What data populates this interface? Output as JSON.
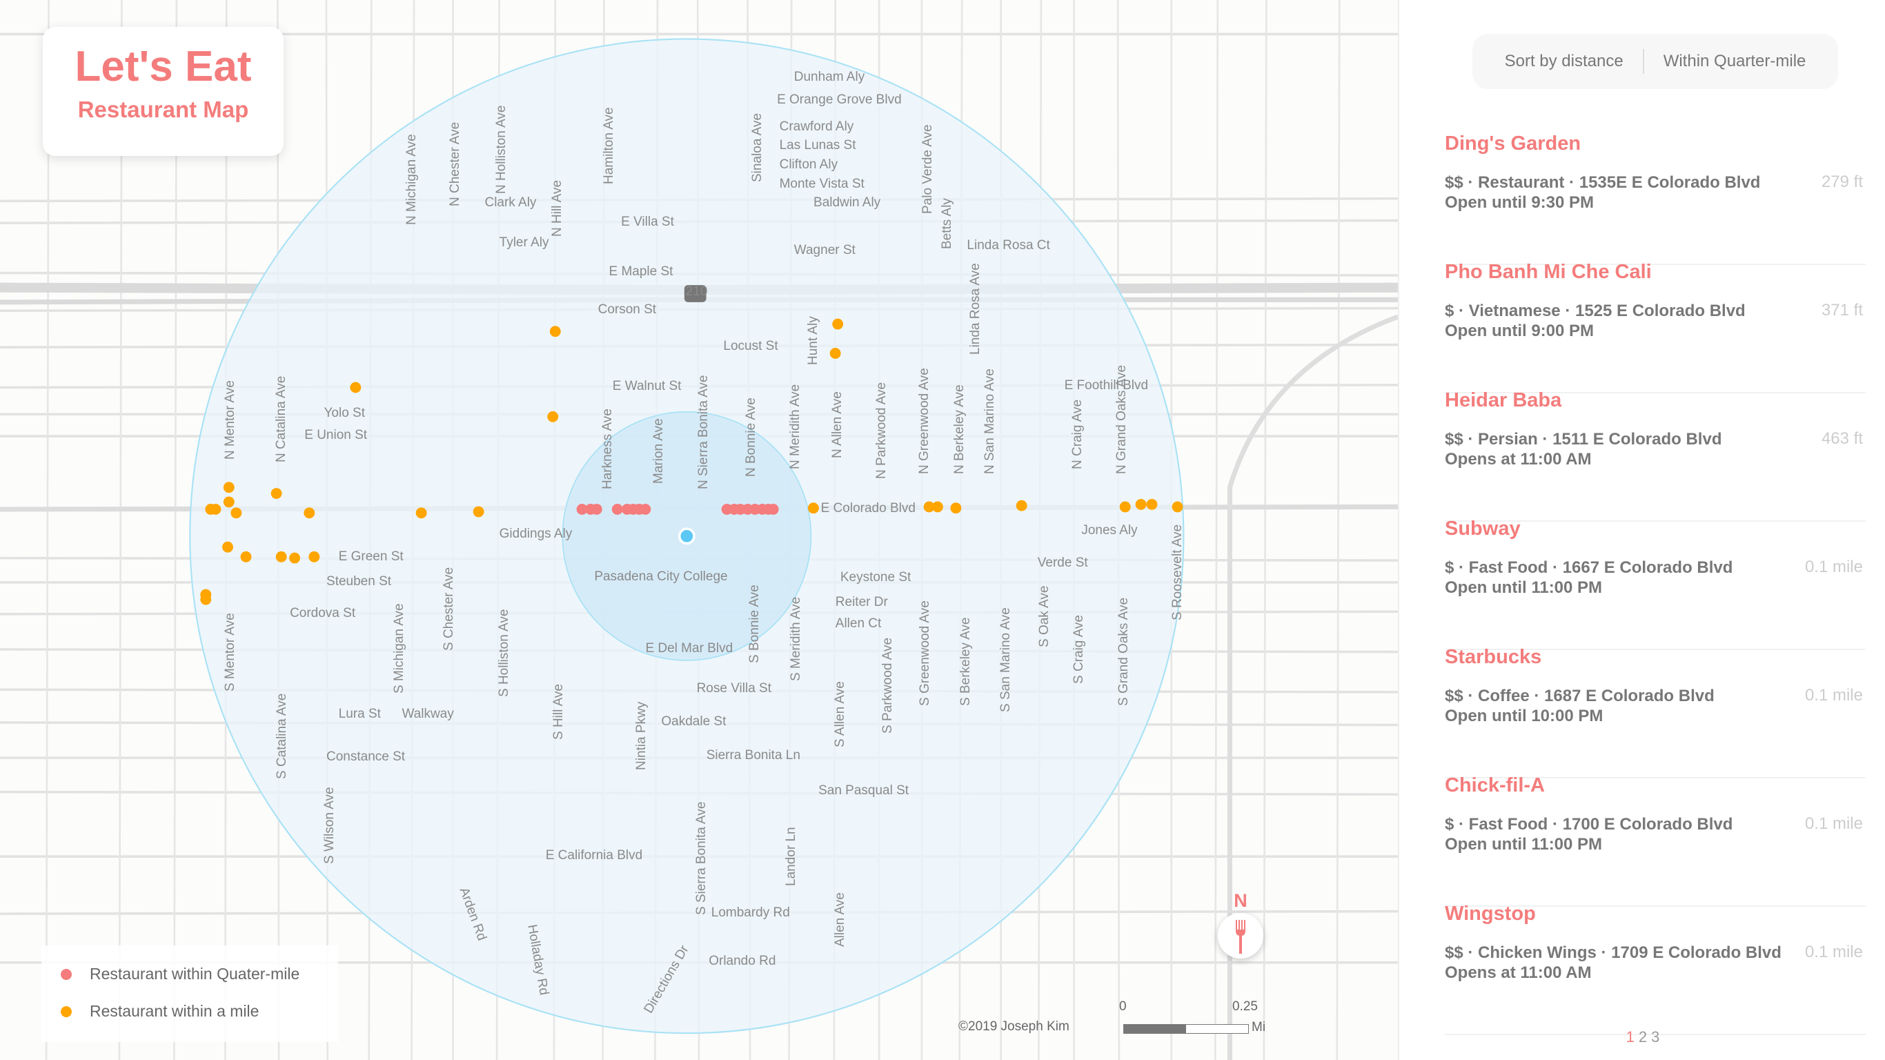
{
  "header": {
    "title": "Let's Eat",
    "subtitle": "Restaurant Map"
  },
  "legend": {
    "items": [
      {
        "label": "Restaurant within Quater-mile",
        "color": "#f47c7c"
      },
      {
        "label": "Restaurant within a mile",
        "color": "#ffa500"
      }
    ]
  },
  "map": {
    "copyright": "©2019 Joseph Kim",
    "scale": {
      "start": "0",
      "end": "0.25",
      "unit": "Mi"
    },
    "compass": "N",
    "colors": {
      "quarter": "#f47c7c",
      "mile": "#ffa500",
      "user": "#5bc8f5",
      "radius_fill": "#e9f4fb",
      "radius_stroke": "#a9e2f5"
    },
    "street_labels": [
      "Dunham Aly",
      "E Orange Grove Blvd",
      "Crawford Aly",
      "Las Lunas St",
      "Clifton Aly",
      "Monte Vista St",
      "Baldwin Aly",
      "Clark Aly",
      "E Villa St",
      "Tyler Aly",
      "Wagner St",
      "E Maple St",
      "Corson St",
      "Locust St",
      "E Walnut St",
      "Yolo St",
      "E Union St",
      "E Foothill Blvd",
      "E Colorado Blvd",
      "Jones Aly",
      "Giddings Aly",
      "E Green St",
      "Steuben St",
      "Cordova St",
      "Pasadena City College",
      "Keystone St",
      "Reiter Dr",
      "Allen Ct",
      "E Del Mar Blvd",
      "Rose Villa St",
      "Oakdale St",
      "Lura St",
      "Walkway",
      "Constance St",
      "Sierra Bonita Ln",
      "San Pasqual St",
      "E California Blvd",
      "Lombardy Rd",
      "Orlando Rd",
      "Directions Dr",
      "Linda Rosa Ct",
      "Verde St",
      "210",
      "N Michigan Ave",
      "N Chester Ave",
      "N Holliston Ave",
      "N Hill Ave",
      "Hamilton Ave",
      "Sinaloa Ave",
      "Palo Verde Ave",
      "Betts Aly",
      "N Mentor Ave",
      "N Catalina Ave",
      "Harkness Ave",
      "Marion Ave",
      "N Sierra Bonita Ave",
      "N Bonnie Ave",
      "N Meridith Ave",
      "N Allen Ave",
      "N Parkwood Ave",
      "N Greenwood Ave",
      "N Berkeley Ave",
      "N San Marino Ave",
      "N Craig Ave",
      "N Grand Oaks Ave",
      "S Mentor Ave",
      "S Catalina Ave",
      "S Michigan Ave",
      "S Chester Ave",
      "S Holliston Ave",
      "S Hill Ave",
      "S Bonnie Ave",
      "S Meridith Ave",
      "S Allen Ave",
      "S Parkwood Ave",
      "S Greenwood Ave",
      "S Berkeley Ave",
      "S San Marino Ave",
      "S Oak Ave",
      "S Craig Ave",
      "S Grand Oaks Ave",
      "S Roosevelt Ave",
      "S Wilson Ave",
      "S Sierra Bonita Ave",
      "Arden Rd",
      "Holladay Rd",
      "Landor Ln",
      "Nintia Pkwy",
      "Allen Ave",
      "Hunt Aly",
      "Linda Rosa Ave"
    ]
  },
  "panel": {
    "sort_label": "Sort by distance",
    "filter_label": "Within Quarter-mile",
    "restaurants": [
      {
        "name": "Ding's Garden",
        "info": "$$ · Restaurant · 1535E E Colorado Blvd",
        "hours": "Open until 9:30 PM",
        "distance": "279 ft"
      },
      {
        "name": "Pho Banh Mi Che Cali",
        "info": "$ · Vietnamese · 1525 E Colorado Blvd",
        "hours": "Open until  9:00 PM",
        "distance": "371 ft"
      },
      {
        "name": "Heidar Baba",
        "info": "$$ · Persian · 1511 E Colorado Blvd",
        "hours": "Opens at 11:00 AM",
        "distance": "463 ft"
      },
      {
        "name": "Subway",
        "info": "$ · Fast Food · 1667 E Colorado Blvd",
        "hours": "Open until 11:00 PM",
        "distance": "0.1 mile"
      },
      {
        "name": "Starbucks",
        "info": "$$ · Coffee · 1687 E Colorado Blvd",
        "hours": "Open until 10:00 PM",
        "distance": "0.1 mile"
      },
      {
        "name": "Chick-fil-A",
        "info": "$ · Fast Food · 1700 E Colorado Blvd",
        "hours": "Open until 11:00 PM",
        "distance": "0.1 mile"
      },
      {
        "name": "Wingstop",
        "info": "$$ · Chicken Wings · 1709 E Colorado Blvd",
        "hours": "Opens at 11:00 AM",
        "distance": "0.1 mile"
      }
    ],
    "pages": [
      "1",
      "2",
      "3"
    ],
    "current_page": "1"
  }
}
